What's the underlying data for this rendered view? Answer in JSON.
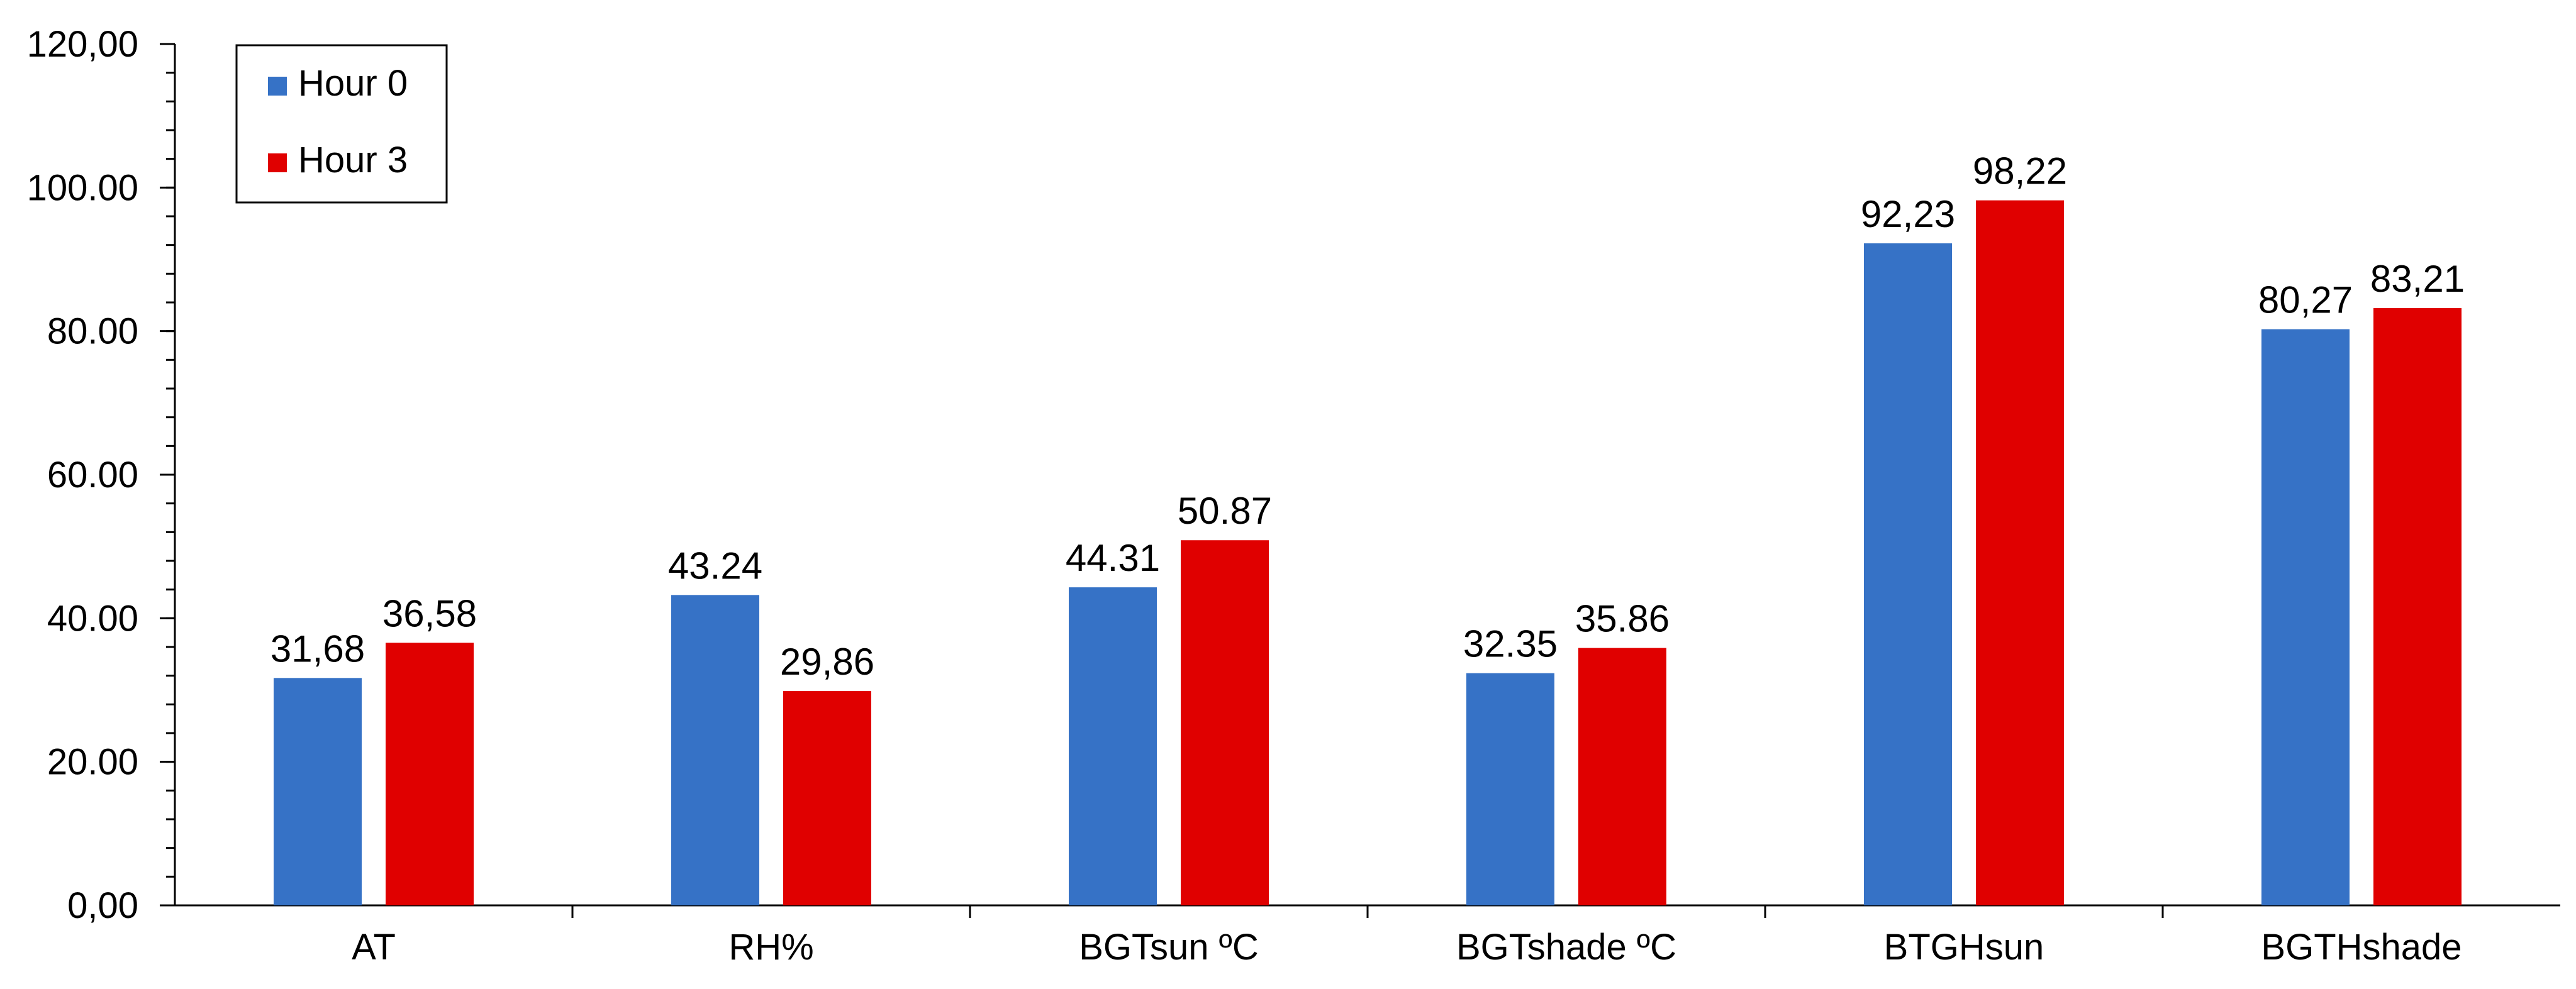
{
  "chart_data": {
    "type": "bar",
    "categories": [
      "AT",
      "RH%",
      "BGTsun ºC",
      "BGTshade ºC",
      "BTGHsun",
      "BGTHshade"
    ],
    "series": [
      {
        "name": "Hour 0",
        "color": "#3672C6",
        "values": [
          31.68,
          43.24,
          44.31,
          32.35,
          92.23,
          80.27
        ],
        "labels": [
          "31,68",
          "43.24",
          "44.31",
          "32.35",
          "92,23",
          "80,27"
        ]
      },
      {
        "name": "Hour 3",
        "color": "#E00000",
        "values": [
          36.58,
          29.86,
          50.87,
          35.86,
          98.22,
          83.21
        ],
        "labels": [
          "36,58",
          "29,86",
          "50.87",
          "35.86",
          "98,22",
          "83,21"
        ]
      }
    ],
    "yticks": [
      {
        "value": 0,
        "label": "0,00"
      },
      {
        "value": 20,
        "label": "20.00"
      },
      {
        "value": 40,
        "label": "40.00"
      },
      {
        "value": 60,
        "label": "60.00"
      },
      {
        "value": 80,
        "label": "80.00"
      },
      {
        "value": 100,
        "label": "100.00"
      },
      {
        "value": 120,
        "label": "120,00"
      }
    ],
    "ylim": [
      0,
      120
    ],
    "minor_tick_step": 4,
    "grid": false,
    "legend_position": "top-left"
  }
}
